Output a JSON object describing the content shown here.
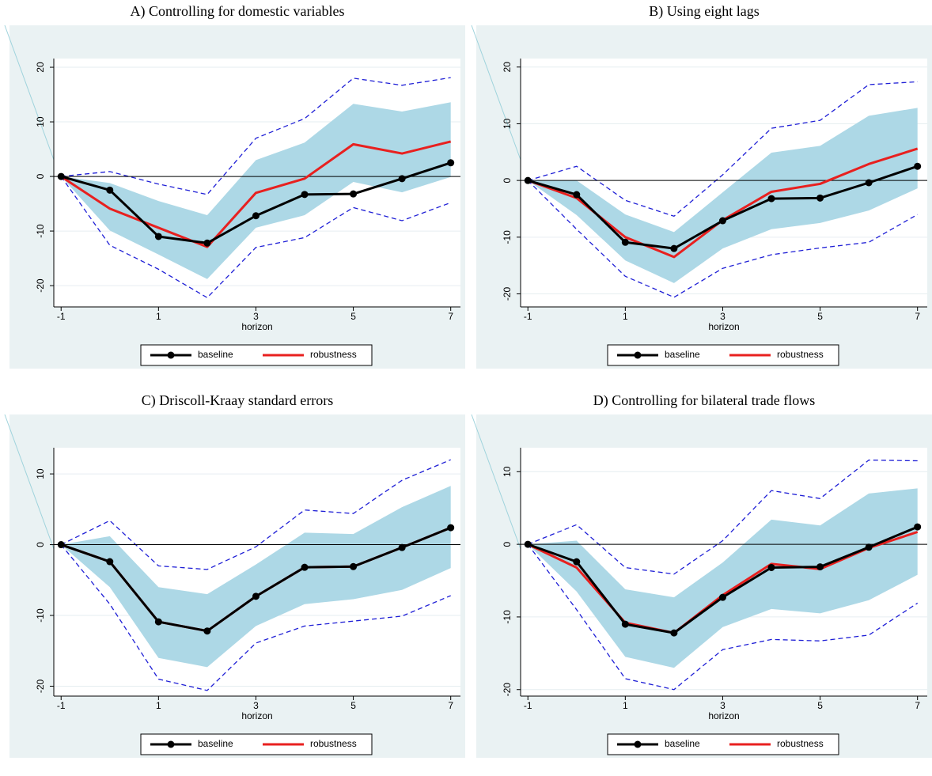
{
  "chart_data": [
    {
      "type": "line",
      "title": "A) Controlling for domestic variables",
      "xlabel": "horizon",
      "x": [
        -1,
        0,
        1,
        2,
        3,
        4,
        5,
        6,
        7
      ],
      "xlim": [
        -1.15,
        7.2
      ],
      "xticks": [
        -1,
        1,
        3,
        5,
        7
      ],
      "ylim": [
        -23.9,
        21.6
      ],
      "yticks": [
        -20,
        -10,
        0,
        10,
        20
      ],
      "grid": true,
      "zero_line": true,
      "legend": "bottom",
      "series": [
        {
          "name": "baseline",
          "color": "#000000",
          "marker": true,
          "values": [
            0,
            -2.5,
            -11,
            -12.2,
            -7.2,
            -3.3,
            -3.2,
            -0.4,
            2.5
          ]
        },
        {
          "name": "robustness",
          "color": "#e8201f",
          "marker": false,
          "values": [
            0,
            -5.9,
            -9.4,
            -12.9,
            -3,
            -0.4,
            5.9,
            4.2,
            6.4
          ]
        }
      ],
      "band": {
        "color": "#add8e6",
        "upper": [
          0,
          -1.2,
          -4.5,
          -7.1,
          3,
          6.2,
          13.3,
          11.9,
          13.6
        ],
        "lower": [
          0,
          -9.9,
          -14.3,
          -18.8,
          -9.4,
          -7.1,
          -1,
          -2.9,
          -0.1
        ]
      },
      "bounds": {
        "color": "#1f1fd6",
        "dashed": true,
        "upper": [
          0,
          0.9,
          -1.4,
          -3.3,
          7,
          10.6,
          18,
          16.7,
          18.1
        ],
        "lower": [
          0,
          -12.6,
          -17,
          -22.2,
          -13,
          -11.2,
          -5.7,
          -8.1,
          -4.8
        ]
      }
    },
    {
      "type": "line",
      "title": "B) Using eight lags",
      "xlabel": "horizon",
      "x": [
        -1,
        0,
        1,
        2,
        3,
        4,
        5,
        6,
        7
      ],
      "xlim": [
        -1.15,
        7.2
      ],
      "xticks": [
        -1,
        1,
        3,
        5,
        7
      ],
      "ylim": [
        -22.3,
        21.5
      ],
      "yticks": [
        -20,
        -10,
        0,
        10,
        20
      ],
      "grid": true,
      "zero_line": true,
      "legend": "bottom",
      "series": [
        {
          "name": "baseline",
          "color": "#000000",
          "marker": true,
          "values": [
            0,
            -2.5,
            -10.9,
            -12,
            -7.1,
            -3.2,
            -3.1,
            -0.4,
            2.5
          ]
        },
        {
          "name": "robustness",
          "color": "#e8201f",
          "marker": false,
          "values": [
            0,
            -3.1,
            -10,
            -13.5,
            -7,
            -2,
            -0.6,
            2.9,
            5.6
          ]
        }
      ],
      "band": {
        "color": "#add8e6",
        "upper": [
          0,
          0,
          -6,
          -9.1,
          -2.1,
          4.9,
          6.1,
          11.4,
          12.8
        ],
        "lower": [
          0,
          -6.1,
          -14.1,
          -18.1,
          -12,
          -8.6,
          -7.5,
          -5.3,
          -1.4
        ]
      },
      "bounds": {
        "color": "#1f1fd6",
        "dashed": true,
        "upper": [
          0,
          2.5,
          -3.5,
          -6.3,
          1,
          9.2,
          10.6,
          16.9,
          17.4
        ],
        "lower": [
          0,
          -8.6,
          -16.9,
          -20.6,
          -15.5,
          -13.1,
          -11.9,
          -10.9,
          -6
        ]
      }
    },
    {
      "type": "line",
      "title": "C) Driscoll-Kraay standard errors",
      "xlabel": "horizon",
      "x": [
        -1,
        0,
        1,
        2,
        3,
        4,
        5,
        6,
        7
      ],
      "xlim": [
        -1.15,
        7.2
      ],
      "xticks": [
        -1,
        1,
        3,
        5,
        7
      ],
      "ylim": [
        -21.4,
        13.7
      ],
      "yticks": [
        -20,
        -10,
        0,
        10
      ],
      "grid": true,
      "zero_line": true,
      "legend": "bottom",
      "series": [
        {
          "name": "baseline",
          "color": "#000000",
          "marker": true,
          "values": [
            0,
            -2.4,
            -10.9,
            -12.2,
            -7.3,
            -3.2,
            -3.1,
            -0.4,
            2.4
          ]
        },
        {
          "name": "robustness",
          "color": "#e8201f",
          "marker": false,
          "values": [
            0,
            -2.4,
            -10.9,
            -12.2,
            -7.3,
            -3.2,
            -3.1,
            -0.4,
            2.4
          ]
        }
      ],
      "band": {
        "color": "#add8e6",
        "upper": [
          0,
          1.2,
          -6,
          -7,
          -2.8,
          1.7,
          1.5,
          5.3,
          8.3
        ],
        "lower": [
          0,
          -6,
          -16,
          -17.3,
          -11.5,
          -8.4,
          -7.7,
          -6.4,
          -3.3
        ]
      },
      "bounds": {
        "color": "#1f1fd6",
        "dashed": true,
        "upper": [
          0,
          3.4,
          -3,
          -3.5,
          -0.3,
          4.9,
          4.4,
          9.1,
          12
        ],
        "lower": [
          0,
          -8.4,
          -19,
          -20.6,
          -13.9,
          -11.5,
          -10.8,
          -10.1,
          -7.2
        ]
      }
    },
    {
      "type": "line",
      "title": "D) Controlling for bilateral trade flows",
      "xlabel": "horizon",
      "x": [
        -1,
        0,
        1,
        2,
        3,
        4,
        5,
        6,
        7
      ],
      "xlim": [
        -1.15,
        7.2
      ],
      "xticks": [
        -1,
        1,
        3,
        5,
        7
      ],
      "ylim": [
        -20.9,
        13.3
      ],
      "yticks": [
        -20,
        -10,
        0,
        10
      ],
      "grid": true,
      "zero_line": true,
      "legend": "bottom",
      "series": [
        {
          "name": "baseline",
          "color": "#000000",
          "marker": true,
          "values": [
            0,
            -2.4,
            -11,
            -12.2,
            -7.3,
            -3.2,
            -3.1,
            -0.4,
            2.4
          ]
        },
        {
          "name": "robustness",
          "color": "#e8201f",
          "marker": false,
          "values": [
            0,
            -3.2,
            -10.8,
            -12.2,
            -7,
            -2.7,
            -3.4,
            -0.5,
            1.7
          ]
        }
      ],
      "band": {
        "color": "#add8e6",
        "upper": [
          0,
          0.5,
          -6.2,
          -7.3,
          -2.5,
          3.4,
          2.6,
          7,
          7.7
        ],
        "lower": [
          0,
          -6.5,
          -15.5,
          -17,
          -11.4,
          -8.9,
          -9.5,
          -7.7,
          -4.2
        ]
      },
      "bounds": {
        "color": "#1f1fd6",
        "dashed": true,
        "upper": [
          0,
          2.7,
          -3.2,
          -4.1,
          0.5,
          7.4,
          6.3,
          11.6,
          11.5
        ],
        "lower": [
          0,
          -9,
          -18.5,
          -20,
          -14.5,
          -13.1,
          -13.3,
          -12.5,
          -8.1
        ]
      }
    }
  ]
}
